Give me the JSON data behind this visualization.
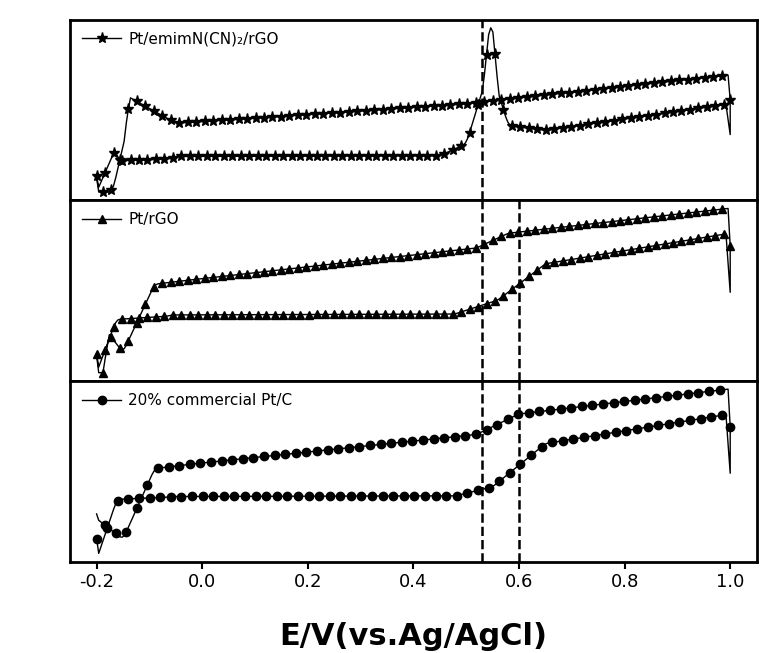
{
  "xlabel": "E/V(vs.Ag/AgCl)",
  "xlabel_fontsize": 22,
  "xlim": [
    -0.25,
    1.05
  ],
  "xticks": [
    -0.2,
    0.0,
    0.2,
    0.4,
    0.6,
    0.8,
    1.0
  ],
  "xticklabels": [
    "-0.2",
    "0.0",
    "0.2",
    "0.4",
    "0.6",
    "0.8",
    "1.0"
  ],
  "dashed_per_panel": [
    [
      0.53
    ],
    [
      0.53,
      0.6
    ],
    [
      0.53,
      0.6
    ]
  ],
  "legends": [
    "Pt/emimN(CN)₂/rGO",
    "Pt/rGO",
    "20% commercial Pt/C"
  ],
  "marker_styles": [
    "*",
    "^",
    "o"
  ],
  "marker_sizes": [
    8,
    6,
    6
  ],
  "marker_sizes_legend": [
    8,
    6,
    6
  ]
}
